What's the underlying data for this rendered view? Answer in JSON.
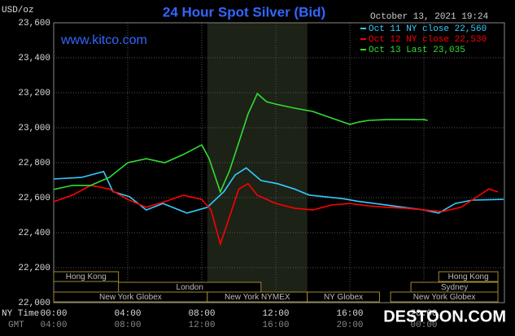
{
  "chart_data": {
    "type": "line",
    "title": "24 Hour Spot Silver (Bid)",
    "date": "October 13, 2021 19:24",
    "y_unit": "USD/oz",
    "site": "www.kitco.com",
    "watermark": "DESTOON.COM",
    "x_row_label": "NY Time",
    "x2_row_label": "GMT",
    "xlim": [
      0,
      24.35
    ],
    "xticks": [
      {
        "value": 0,
        "label": "00:00"
      },
      {
        "value": 4,
        "label": "04:00"
      },
      {
        "value": 8,
        "label": "08:00"
      },
      {
        "value": 12,
        "label": "12:00"
      },
      {
        "value": 16,
        "label": "16:00"
      },
      {
        "value": 20,
        "label": "20:00"
      }
    ],
    "x2_labels": [
      "04:00",
      "08:00",
      "12:00",
      "16:00",
      "20:00",
      "00:00"
    ],
    "ylim": [
      22000,
      23600
    ],
    "yticks": [
      {
        "value": 22000,
        "label": "22,000"
      },
      {
        "value": 22200,
        "label": "22,200"
      },
      {
        "value": 22400,
        "label": "22,400"
      },
      {
        "value": 22600,
        "label": "22,600"
      },
      {
        "value": 22800,
        "label": "22,800"
      },
      {
        "value": 23000,
        "label": "23,000"
      },
      {
        "value": 23200,
        "label": "23,200"
      },
      {
        "value": 23400,
        "label": "23,400"
      },
      {
        "value": 23600,
        "label": "23,600"
      }
    ],
    "grid": true,
    "session_rows": [
      [
        {
          "label": "Hong Kong",
          "start": 0,
          "end": 3.5
        },
        {
          "label": "Hong Kong",
          "start": 20.8,
          "end": 24
        }
      ],
      [
        {
          "label": "London",
          "start": 3.5,
          "end": 11.2
        },
        {
          "label": "Sydney",
          "start": 19.3,
          "end": 24
        }
      ],
      [
        {
          "label": "New York Globex",
          "start": 0,
          "end": 8.3
        },
        {
          "label": "New York NYMEX",
          "start": 8.3,
          "end": 13.7
        },
        {
          "label": "NY Globex",
          "start": 13.7,
          "end": 17.6
        },
        {
          "label": "New York Globex",
          "start": 18.2,
          "end": 24
        }
      ]
    ],
    "series": [
      {
        "name": "Oct 11 NY close 22,560",
        "color": "#33ccff",
        "x": [
          0,
          1.5,
          2.7,
          3.2,
          4.1,
          5,
          5.9,
          7.2,
          8.3,
          9.2,
          9.8,
          10.4,
          11.2,
          12.1,
          13,
          13.8,
          15.6,
          16.4,
          18.2,
          20,
          20.8,
          21.7,
          22.6,
          24.3
        ],
        "values": [
          22707,
          22716,
          22750,
          22635,
          22605,
          22530,
          22567,
          22512,
          22545,
          22635,
          22730,
          22770,
          22698,
          22680,
          22650,
          22615,
          22595,
          22580,
          22555,
          22530,
          22512,
          22567,
          22586,
          22590
        ]
      },
      {
        "name": "Oct 12 NY close 22,530",
        "color": "#ff0000",
        "x": [
          0,
          1,
          2,
          3,
          4,
          5,
          6,
          7,
          8,
          8.5,
          9,
          9.3,
          10,
          10.5,
          11,
          12,
          13,
          14,
          15,
          16,
          17,
          18,
          19,
          20,
          21,
          22,
          23,
          23.5,
          24
        ],
        "values": [
          22577,
          22614,
          22670,
          22650,
          22590,
          22545,
          22577,
          22614,
          22590,
          22530,
          22335,
          22428,
          22650,
          22680,
          22614,
          22567,
          22540,
          22530,
          22558,
          22567,
          22553,
          22545,
          22540,
          22530,
          22521,
          22545,
          22614,
          22650,
          22633
        ]
      },
      {
        "name": "Oct 13 Last 23,035",
        "color": "#33dd33",
        "x": [
          0,
          1,
          2,
          3,
          4,
          5,
          6,
          7,
          8,
          8.4,
          9,
          9.5,
          10,
          10.5,
          11,
          11.5,
          12,
          13,
          14,
          15,
          16,
          16.5,
          17,
          18,
          19,
          20,
          20.2
        ],
        "values": [
          22647,
          22670,
          22670,
          22716,
          22800,
          22823,
          22800,
          22847,
          22902,
          22823,
          22633,
          22754,
          22916,
          23079,
          23195,
          23149,
          23135,
          23112,
          23093,
          23056,
          23019,
          23033,
          23042,
          23047,
          23047,
          23047,
          23042
        ]
      }
    ]
  }
}
